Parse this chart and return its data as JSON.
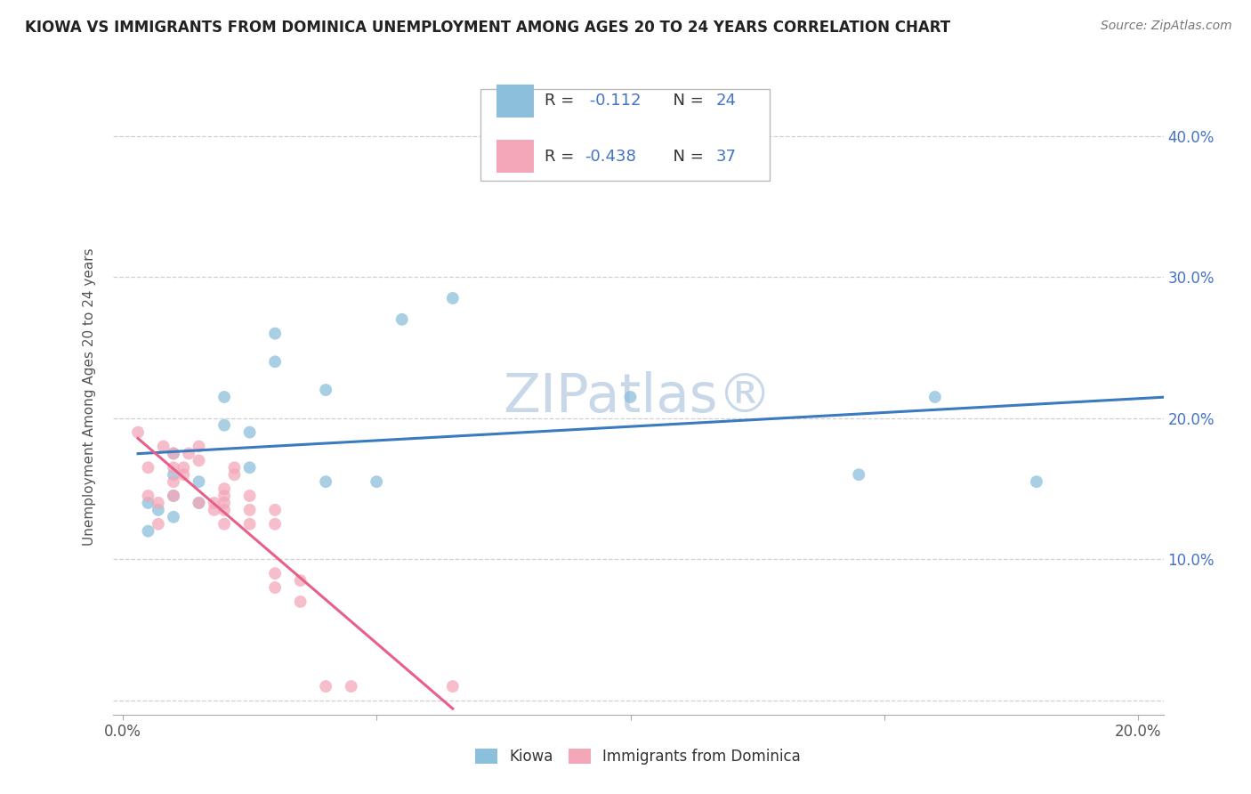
{
  "title": "KIOWA VS IMMIGRANTS FROM DOMINICA UNEMPLOYMENT AMONG AGES 20 TO 24 YEARS CORRELATION CHART",
  "source": "Source: ZipAtlas.com",
  "ylabel": "Unemployment Among Ages 20 to 24 years",
  "xlim": [
    -0.002,
    0.205
  ],
  "ylim": [
    -0.01,
    0.44
  ],
  "xticks": [
    0.0,
    0.05,
    0.1,
    0.15,
    0.2
  ],
  "xticklabels_bottom": [
    "0.0%",
    "",
    "",
    "",
    "20.0%"
  ],
  "yticks": [
    0.0,
    0.1,
    0.2,
    0.3,
    0.4
  ],
  "yticklabels_right": [
    "",
    "10.0%",
    "20.0%",
    "30.0%",
    "40.0%"
  ],
  "background_color": "#ffffff",
  "grid_color": "#d0d0d0",
  "kiowa_color": "#8cbfdc",
  "dominica_color": "#f4a7b9",
  "trendline_kiowa_color": "#3a7bbf",
  "trendline_dominica_color": "#e8608a",
  "kiowa_x": [
    0.005,
    0.005,
    0.007,
    0.01,
    0.01,
    0.01,
    0.01,
    0.015,
    0.015,
    0.02,
    0.02,
    0.025,
    0.025,
    0.03,
    0.03,
    0.04,
    0.04,
    0.05,
    0.055,
    0.065,
    0.1,
    0.145,
    0.16,
    0.18
  ],
  "kiowa_y": [
    0.14,
    0.12,
    0.135,
    0.145,
    0.13,
    0.16,
    0.175,
    0.155,
    0.14,
    0.195,
    0.215,
    0.19,
    0.165,
    0.24,
    0.26,
    0.22,
    0.155,
    0.155,
    0.27,
    0.285,
    0.215,
    0.16,
    0.215,
    0.155
  ],
  "dominica_x": [
    0.003,
    0.005,
    0.005,
    0.007,
    0.007,
    0.008,
    0.01,
    0.01,
    0.01,
    0.01,
    0.012,
    0.012,
    0.013,
    0.015,
    0.015,
    0.015,
    0.018,
    0.018,
    0.02,
    0.02,
    0.02,
    0.02,
    0.02,
    0.022,
    0.022,
    0.025,
    0.025,
    0.025,
    0.03,
    0.03,
    0.03,
    0.03,
    0.035,
    0.035,
    0.04,
    0.045,
    0.065
  ],
  "dominica_y": [
    0.19,
    0.165,
    0.145,
    0.14,
    0.125,
    0.18,
    0.175,
    0.165,
    0.155,
    0.145,
    0.165,
    0.16,
    0.175,
    0.18,
    0.17,
    0.14,
    0.14,
    0.135,
    0.145,
    0.135,
    0.125,
    0.14,
    0.15,
    0.16,
    0.165,
    0.135,
    0.125,
    0.145,
    0.125,
    0.135,
    0.09,
    0.08,
    0.085,
    0.07,
    0.01,
    0.01,
    0.01
  ],
  "marker_size": 100,
  "kiowa_trendline_x_start": 0.003,
  "kiowa_trendline_x_end": 0.205,
  "dominica_trendline_x_start": 0.003,
  "dominica_trendline_x_end": 0.065
}
